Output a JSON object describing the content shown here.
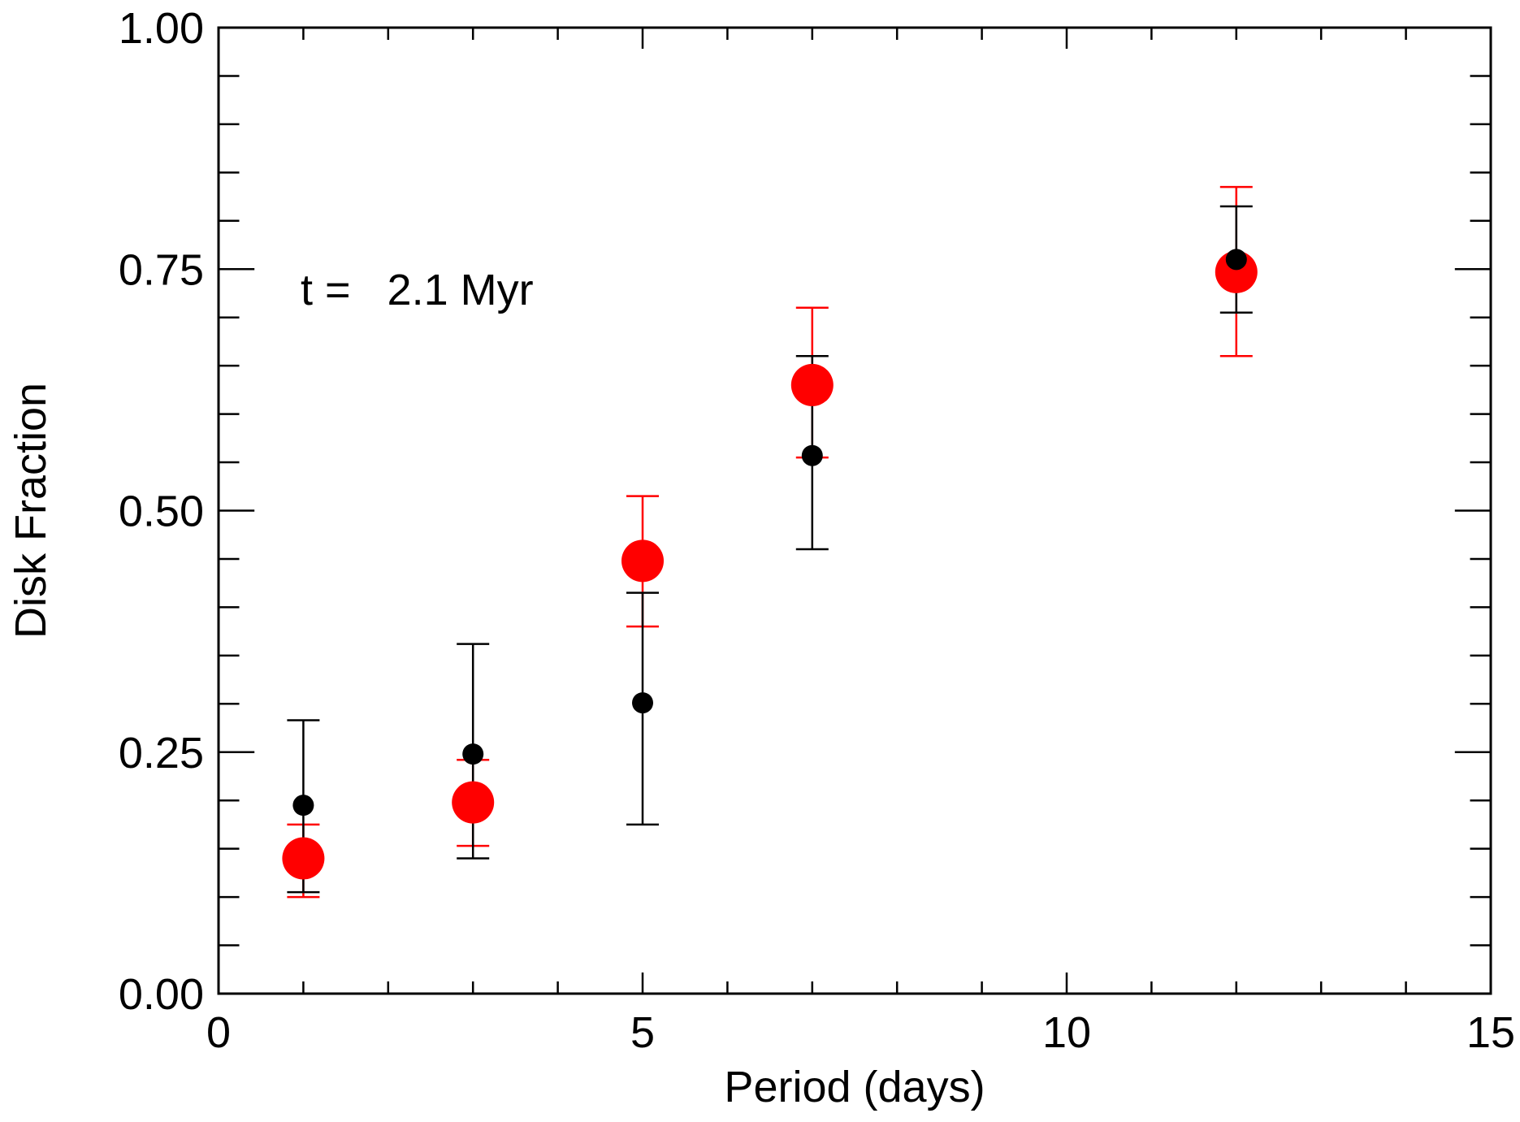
{
  "chart_data": {
    "type": "scatter",
    "title": "",
    "xlabel": "Period (days)",
    "ylabel": "Disk Fraction",
    "xlim": [
      0,
      15
    ],
    "ylim": [
      0.0,
      1.0
    ],
    "x_major_ticks": [
      0,
      5,
      10,
      15
    ],
    "x_minor_step": 1,
    "y_major_ticks": [
      0.0,
      0.25,
      0.5,
      0.75,
      1.0
    ],
    "y_minor_step": 0.05,
    "x_tick_labels": [
      "0",
      "5",
      "10",
      "15"
    ],
    "y_tick_labels": [
      "0.00",
      "0.25",
      "0.50",
      "0.75",
      "1.00"
    ],
    "grid": false,
    "annotation": "t =   2.1 Myr",
    "series": [
      {
        "name": "red",
        "color": "#ff0000",
        "marker": "large-filled-circle",
        "x": [
          1,
          3,
          5,
          7,
          12
        ],
        "y": [
          0.14,
          0.198,
          0.448,
          0.63,
          0.747
        ],
        "yerr_low": [
          0.1,
          0.153,
          0.38,
          0.555,
          0.66
        ],
        "yerr_high": [
          0.175,
          0.242,
          0.515,
          0.71,
          0.835
        ]
      },
      {
        "name": "black",
        "color": "#000000",
        "marker": "small-filled-circle",
        "x": [
          1,
          3,
          5,
          7,
          12
        ],
        "y": [
          0.195,
          0.248,
          0.301,
          0.557,
          0.76
        ],
        "yerr_low": [
          0.105,
          0.14,
          0.175,
          0.46,
          0.705
        ],
        "yerr_high": [
          0.283,
          0.362,
          0.415,
          0.66,
          0.815
        ]
      }
    ]
  }
}
